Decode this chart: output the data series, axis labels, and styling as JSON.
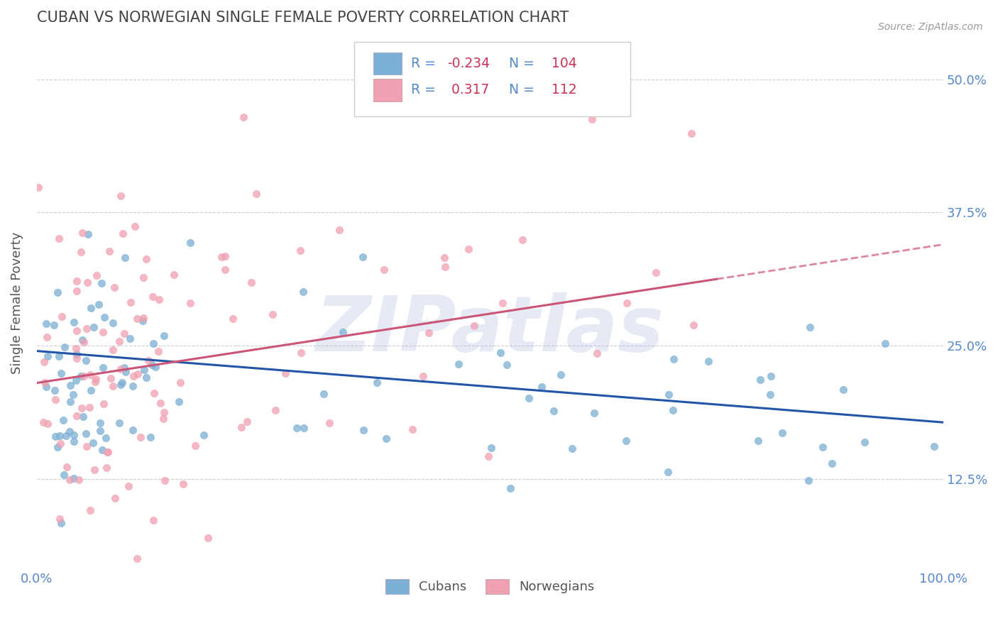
{
  "title": "CUBAN VS NORWEGIAN SINGLE FEMALE POVERTY CORRELATION CHART",
  "source_text": "Source: ZipAtlas.com",
  "ylabel": "Single Female Poverty",
  "xlim": [
    0.0,
    1.0
  ],
  "ylim": [
    0.04,
    0.54
  ],
  "yticks": [
    0.125,
    0.25,
    0.375,
    0.5
  ],
  "ytick_labels": [
    "12.5%",
    "25.0%",
    "37.5%",
    "50.0%"
  ],
  "xticks": [
    0.0,
    1.0
  ],
  "xtick_labels": [
    "0.0%",
    "100.0%"
  ],
  "cuban_color": "#7BAFD4",
  "norwegian_color": "#F0A0B0",
  "cuban_R": -0.234,
  "cuban_N": 104,
  "norwegian_R": 0.317,
  "norwegian_N": 112,
  "trend_blue": "#2255AA",
  "trend_pink": "#CC5577",
  "watermark": "ZIPatlas",
  "watermark_color": "#AABBDD",
  "background_color": "#FFFFFF",
  "grid_color": "#CCCCDD",
  "title_color": "#444444",
  "axis_label_color": "#555555",
  "tick_color": "#5588CC",
  "legend_text_color": "#5588CC",
  "legend_r_color": "#CC3355",
  "cuban_trend_start_y": 0.245,
  "cuban_trend_end_y": 0.178,
  "norw_trend_start_y": 0.215,
  "norw_trend_end_y": 0.345
}
